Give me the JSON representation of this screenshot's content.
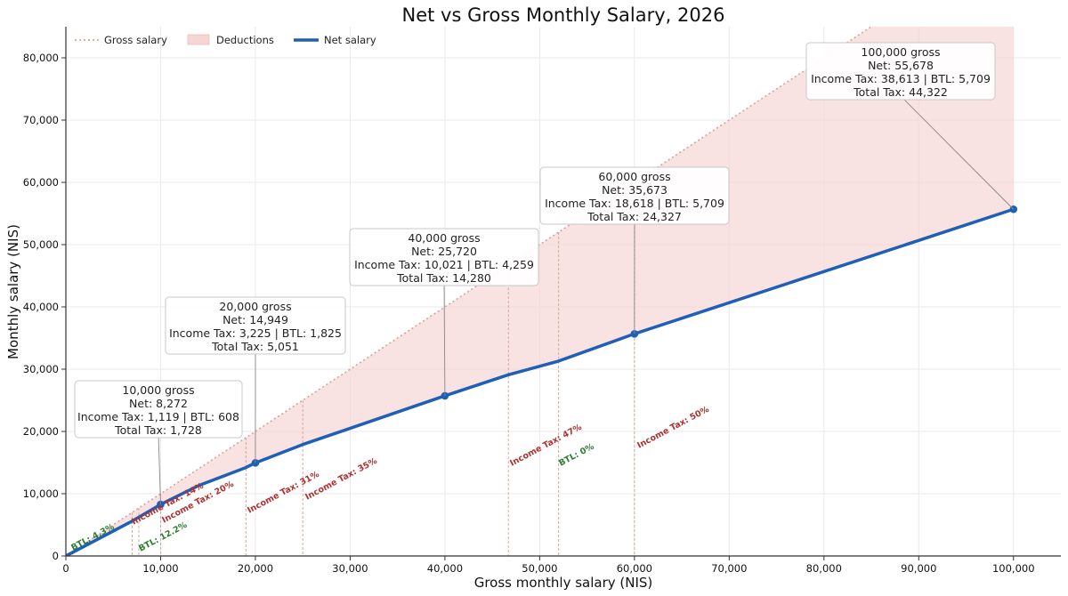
{
  "chart_data": {
    "type": "line",
    "title": "Net vs Gross Monthly Salary, 2026",
    "xlabel": "Gross monthly salary (NIS)",
    "ylabel": "Monthly salary (NIS)",
    "xlim": [
      0,
      105000
    ],
    "ylim": [
      0,
      85000
    ],
    "xticks": [
      0,
      10000,
      20000,
      30000,
      40000,
      50000,
      60000,
      70000,
      80000,
      90000,
      100000
    ],
    "xtick_labels": [
      "0",
      "10,000",
      "20,000",
      "30,000",
      "40,000",
      "50,000",
      "60,000",
      "70,000",
      "80,000",
      "90,000",
      "100,000"
    ],
    "yticks": [
      0,
      10000,
      20000,
      30000,
      40000,
      50000,
      60000,
      70000,
      80000
    ],
    "ytick_labels": [
      "0",
      "10,000",
      "20,000",
      "30,000",
      "40,000",
      "50,000",
      "60,000",
      "70,000",
      "80,000"
    ],
    "grid": true,
    "legend_position": "top-left",
    "legend": [
      {
        "label": "Gross salary",
        "style": "dotted-line",
        "color": "#d9a0a0"
      },
      {
        "label": "Deductions",
        "style": "filled-area",
        "color": "#f6d5d5"
      },
      {
        "label": "Net salary",
        "style": "solid-line",
        "color": "#1f5fb5"
      }
    ],
    "series": [
      {
        "name": "Gross salary",
        "x": [
          0,
          100000
        ],
        "y": [
          0,
          100000
        ]
      },
      {
        "name": "Net salary",
        "x": [
          0,
          7000,
          10000,
          14000,
          19000,
          20000,
          25000,
          40000,
          46700,
          52000,
          60000,
          100000
        ],
        "y": [
          0,
          5600,
          8272,
          11300,
          14200,
          14949,
          17900,
          25720,
          29100,
          31300,
          35673,
          55678
        ]
      }
    ],
    "highlight_points": [
      {
        "x": 10000,
        "y": 8272
      },
      {
        "x": 20000,
        "y": 14949
      },
      {
        "x": 40000,
        "y": 25720
      },
      {
        "x": 60000,
        "y": 35673
      },
      {
        "x": 100000,
        "y": 55678
      }
    ],
    "annotations": [
      {
        "x": 10000,
        "y": 8272,
        "lines": [
          "10,000 gross",
          "Net: 8,272",
          "Income Tax: 1,119 | BTL: 608",
          "Total Tax: 1,728"
        ]
      },
      {
        "x": 20000,
        "y": 14949,
        "lines": [
          "20,000 gross",
          "Net: 14,949",
          "Income Tax: 3,225 | BTL: 1,825",
          "Total Tax: 5,051"
        ]
      },
      {
        "x": 40000,
        "y": 25720,
        "lines": [
          "40,000 gross",
          "Net: 25,720",
          "Income Tax: 10,021 | BTL: 4,259",
          "Total Tax: 14,280"
        ]
      },
      {
        "x": 60000,
        "y": 35673,
        "lines": [
          "60,000 gross",
          "Net: 35,673",
          "Income Tax: 18,618 | BTL: 5,709",
          "Total Tax: 24,327"
        ]
      },
      {
        "x": 100000,
        "y": 55678,
        "lines": [
          "100,000 gross",
          "Net: 55,678",
          "Income Tax: 38,613 | BTL: 5,709",
          "Total Tax: 44,322"
        ]
      }
    ],
    "brackets": [
      {
        "x": 700,
        "label": "BTL: 4.3%",
        "kind": "BTL",
        "color": "#2e7d32"
      },
      {
        "x": 7000,
        "label": "Income Tax: 14%",
        "kind": "Income Tax",
        "color": "#b03030"
      },
      {
        "x": 7700,
        "label": "BTL: 12.2%",
        "kind": "BTL",
        "color": "#2e7d32"
      },
      {
        "x": 10000,
        "label": "Income Tax: 20%",
        "kind": "Income Tax",
        "color": "#b03030"
      },
      {
        "x": 19000,
        "label": "Income Tax: 31%",
        "kind": "Income Tax",
        "color": "#b03030"
      },
      {
        "x": 25000,
        "label": "Income Tax: 35%",
        "kind": "Income Tax",
        "color": "#b03030"
      },
      {
        "x": 46700,
        "label": "Income Tax: 47%",
        "kind": "Income Tax",
        "color": "#b03030"
      },
      {
        "x": 52000,
        "label": "BTL: 0%",
        "kind": "BTL",
        "color": "#2e7d32"
      },
      {
        "x": 60000,
        "label": "Income Tax: 50%",
        "kind": "Income Tax",
        "color": "#b03030"
      }
    ]
  }
}
